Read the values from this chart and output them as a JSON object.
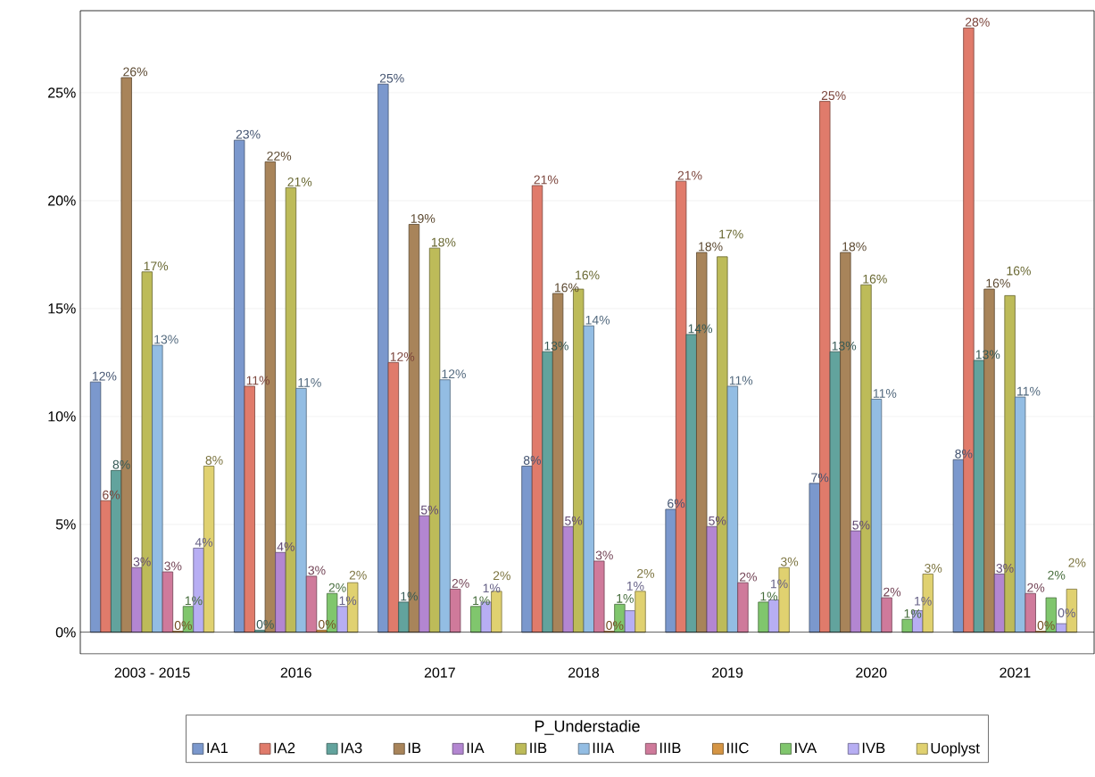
{
  "chart_data": {
    "type": "bar",
    "categories": [
      "2003 - 2015",
      "2016",
      "2017",
      "2018",
      "2019",
      "2020",
      "2021"
    ],
    "ylim": [
      -1,
      28.8
    ],
    "yticks": [
      {
        "value": 0,
        "label": "0%"
      },
      {
        "value": 5,
        "label": "5%"
      },
      {
        "value": 10,
        "label": "10%"
      },
      {
        "value": 15,
        "label": "15%"
      },
      {
        "value": 20,
        "label": "20%"
      },
      {
        "value": 25,
        "label": "25%"
      }
    ],
    "grid": "y",
    "legend": "bottom",
    "legend_title": "P_Understadie",
    "series": [
      {
        "name": "IA1",
        "color": "#7b98cd",
        "values": [
          11.6,
          22.8,
          25.4,
          7.7,
          5.7,
          6.9,
          8.0
        ],
        "value_labels": [
          "12%",
          "23%",
          "25%",
          "8%",
          "6%",
          "7%",
          "8%"
        ]
      },
      {
        "name": "IA2",
        "color": "#e07b6b",
        "values": [
          6.1,
          11.4,
          12.5,
          20.7,
          20.9,
          24.6,
          28.0
        ],
        "value_labels": [
          "6%",
          "11%",
          "12%",
          "21%",
          "21%",
          "25%",
          "28%"
        ]
      },
      {
        "name": "IA3",
        "color": "#62a39d",
        "values": [
          7.5,
          0.1,
          1.4,
          13.0,
          13.8,
          13.0,
          12.6
        ],
        "value_labels": [
          "8%",
          "0%",
          "1%",
          "13%",
          "14%",
          "13%",
          "13%"
        ]
      },
      {
        "name": "IB",
        "color": "#a8845a",
        "values": [
          25.7,
          21.8,
          18.9,
          15.7,
          17.6,
          17.6,
          15.9
        ],
        "value_labels": [
          "26%",
          "22%",
          "19%",
          "16%",
          "18%",
          "18%",
          "16%"
        ]
      },
      {
        "name": "IIA",
        "color": "#b386d1",
        "values": [
          3.0,
          3.7,
          5.4,
          4.9,
          4.9,
          4.7,
          2.7
        ],
        "value_labels": [
          "3%",
          "4%",
          "5%",
          "5%",
          "5%",
          "5%",
          "3%"
        ]
      },
      {
        "name": "IIB",
        "color": "#bdbb59",
        "values": [
          16.7,
          20.6,
          17.8,
          15.9,
          17.4,
          16.1,
          15.6
        ],
        "value_labels": [
          "17%",
          "21%",
          "18%",
          "16%",
          "17%",
          "16%",
          "16%"
        ]
      },
      {
        "name": "IIIA",
        "color": "#93bde3",
        "values": [
          13.3,
          11.3,
          11.7,
          14.2,
          11.4,
          10.8,
          10.9
        ],
        "value_labels": [
          "13%",
          "11%",
          "12%",
          "14%",
          "11%",
          "11%",
          "11%"
        ]
      },
      {
        "name": "IIIB",
        "color": "#cf7a9b",
        "values": [
          2.8,
          2.6,
          2.0,
          3.3,
          2.3,
          1.6,
          1.8
        ],
        "value_labels": [
          "3%",
          "3%",
          "2%",
          "3%",
          "2%",
          "2%",
          "2%"
        ]
      },
      {
        "name": "IIIC",
        "color": "#d59544",
        "values": [
          0.05,
          0.1,
          null,
          0.05,
          null,
          null,
          0.05
        ],
        "value_labels": [
          "0%",
          "0%",
          null,
          "0%",
          null,
          null,
          "0%"
        ]
      },
      {
        "name": "IVA",
        "color": "#80c66d",
        "values": [
          1.2,
          1.8,
          1.2,
          1.3,
          1.4,
          0.6,
          1.6
        ],
        "value_labels": [
          "1%",
          "2%",
          "1%",
          "1%",
          "1%",
          "1%",
          "2%"
        ]
      },
      {
        "name": "IVB",
        "color": "#b7aef3",
        "values": [
          3.9,
          1.2,
          1.4,
          1.0,
          1.5,
          1.0,
          0.4
        ],
        "value_labels": [
          "4%",
          "1%",
          "1%",
          "1%",
          "1%",
          "1%",
          "0%"
        ]
      },
      {
        "name": "Uoplyst",
        "color": "#e0d170",
        "values": [
          7.7,
          2.3,
          1.9,
          1.9,
          3.0,
          2.7,
          2.0
        ],
        "value_labels": [
          "8%",
          "2%",
          "2%",
          "2%",
          "3%",
          "3%",
          "2%"
        ]
      }
    ]
  }
}
